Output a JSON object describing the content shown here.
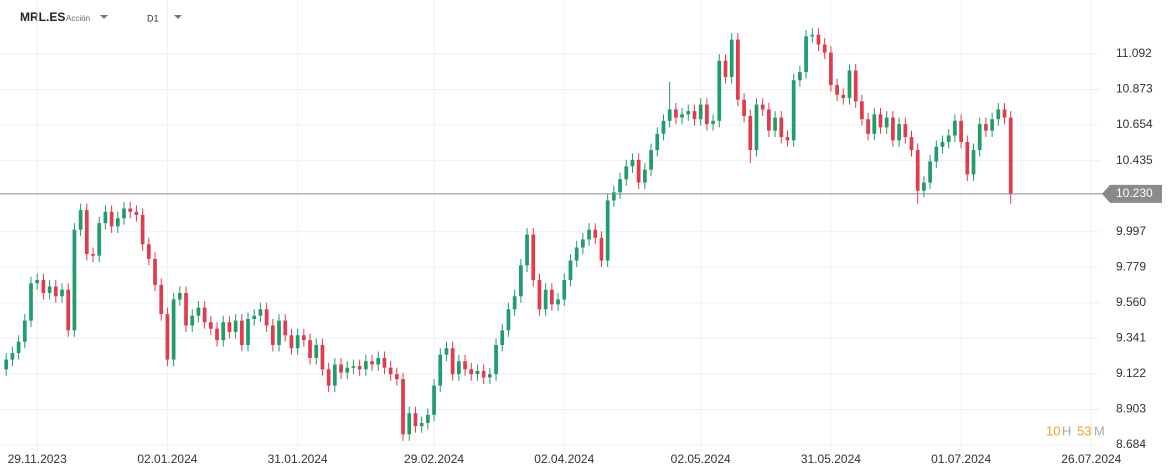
{
  "header": {
    "symbol": "MRL.ES",
    "kind": "Acción",
    "timeframe": "D1"
  },
  "timer": {
    "hours": "10",
    "hours_unit": "H",
    "minutes": "53",
    "minutes_unit": "M"
  },
  "chart_data": {
    "type": "candlestick",
    "up_color": "#1f9d6b",
    "down_color": "#e23b4e",
    "grid": true,
    "xlim": [
      -1,
      176.4
    ],
    "xticks": [
      {
        "value": 5,
        "label": "29.11.2023"
      },
      {
        "value": 26,
        "label": "02.01.2024"
      },
      {
        "value": 47,
        "label": "31.01.2024"
      },
      {
        "value": 69,
        "label": "29.02.2024"
      },
      {
        "value": 90,
        "label": "02.04.2024"
      },
      {
        "value": 112,
        "label": "02.05.2024"
      },
      {
        "value": 133,
        "label": "31.05.2024"
      },
      {
        "value": 154,
        "label": "01.07.2024"
      },
      {
        "value": 175,
        "label": "26.07.2024"
      }
    ],
    "ylim": [
      8.641,
      11.424
    ],
    "yticks": [
      11.092,
      10.873,
      10.654,
      10.435,
      9.997,
      9.779,
      {
        "value": 9.56,
        "label": "9.560"
      },
      9.341,
      9.122,
      8.903,
      8.684
    ],
    "last_price": {
      "value": 10.23,
      "label": "10.230"
    },
    "open": [
      9.15,
      9.21,
      9.25,
      9.32,
      9.45,
      9.68,
      9.7,
      9.62,
      9.66,
      9.6,
      9.64,
      9.39,
      10.01,
      10.13,
      9.86,
      9.85,
      10.05,
      10.12,
      10.03,
      10.08,
      10.14,
      10.12,
      10.1,
      9.92,
      9.83,
      9.67,
      9.49,
      9.21,
      9.58,
      9.62,
      9.42,
      9.48,
      9.53,
      9.44,
      9.4,
      9.33,
      9.44,
      9.38,
      9.45,
      9.3,
      9.46,
      9.48,
      9.52,
      9.42,
      9.3,
      9.45,
      9.36,
      9.28,
      9.36,
      9.33,
      9.22,
      9.3,
      9.15,
      9.05,
      9.18,
      9.13,
      9.16,
      9.17,
      9.15,
      9.2,
      9.18,
      9.22,
      9.16,
      9.12,
      9.09,
      8.75,
      8.88,
      8.8,
      8.82,
      8.87,
      9.05,
      9.24,
      9.28,
      9.12,
      9.2,
      9.15,
      9.12,
      9.14,
      9.1,
      9.12,
      9.3,
      9.39,
      9.52,
      9.6,
      9.79,
      9.98,
      9.7,
      9.52,
      9.64,
      9.55,
      9.58,
      9.7,
      9.82,
      9.9,
      9.95,
      10.01,
      9.96,
      9.82,
      10.19,
      10.24,
      10.32,
      10.4,
      10.44,
      10.3,
      10.38,
      10.5,
      10.6,
      10.68,
      10.75,
      10.7,
      10.72,
      10.74,
      10.69,
      10.78,
      10.66,
      10.68,
      11.05,
      10.95,
      11.18,
      10.81,
      10.71,
      10.5,
      10.78,
      10.75,
      10.62,
      10.7,
      10.58,
      10.56,
      10.93,
      10.98,
      11.2,
      11.21,
      11.15,
      11.1,
      10.9,
      10.84,
      10.82,
      10.99,
      10.8,
      10.69,
      10.6,
      10.72,
      10.64,
      10.7,
      10.56,
      10.66,
      10.58,
      10.5,
      10.25,
      10.3,
      10.43,
      10.52,
      10.55,
      10.59,
      10.68,
      10.55,
      10.35,
      10.5,
      10.66,
      10.62,
      10.69,
      10.75,
      10.7
    ],
    "high": [
      9.25,
      9.29,
      9.36,
      9.49,
      9.72,
      9.74,
      9.74,
      9.7,
      9.7,
      9.68,
      9.68,
      10.05,
      10.17,
      10.17,
      9.9,
      10.09,
      10.16,
      10.16,
      10.12,
      10.18,
      10.18,
      10.16,
      10.14,
      9.96,
      9.87,
      9.71,
      9.53,
      9.62,
      9.66,
      9.66,
      9.52,
      9.57,
      9.57,
      9.48,
      9.44,
      9.48,
      9.48,
      9.49,
      9.49,
      9.5,
      9.52,
      9.56,
      9.56,
      9.46,
      9.49,
      9.49,
      9.4,
      9.4,
      9.4,
      9.37,
      9.34,
      9.34,
      9.19,
      9.22,
      9.22,
      9.2,
      9.21,
      9.21,
      9.24,
      9.24,
      9.26,
      9.26,
      9.2,
      9.16,
      9.13,
      8.92,
      8.92,
      8.86,
      8.91,
      9.09,
      9.28,
      9.32,
      9.32,
      9.24,
      9.24,
      9.19,
      9.18,
      9.18,
      9.16,
      9.34,
      9.43,
      9.56,
      9.64,
      9.83,
      10.02,
      10.02,
      9.74,
      9.68,
      9.68,
      9.62,
      9.74,
      9.86,
      9.94,
      9.99,
      10.05,
      10.05,
      10.0,
      10.23,
      10.28,
      10.36,
      10.44,
      10.48,
      10.48,
      10.42,
      10.54,
      10.64,
      10.72,
      10.92,
      10.79,
      10.76,
      10.78,
      10.78,
      10.82,
      10.82,
      10.72,
      11.09,
      11.09,
      11.22,
      11.22,
      10.85,
      10.75,
      10.82,
      10.82,
      10.79,
      10.74,
      10.74,
      10.62,
      10.97,
      11.02,
      11.24,
      11.25,
      11.25,
      11.19,
      11.14,
      10.94,
      10.88,
      11.03,
      11.03,
      10.84,
      10.73,
      10.76,
      10.76,
      10.74,
      10.74,
      10.7,
      10.7,
      10.62,
      10.54,
      10.34,
      10.47,
      10.56,
      10.59,
      10.63,
      10.72,
      10.72,
      10.59,
      10.54,
      10.7,
      10.7,
      10.73,
      10.79,
      10.79,
      10.74
    ],
    "low": [
      9.11,
      9.17,
      9.21,
      9.28,
      9.41,
      9.64,
      9.58,
      9.58,
      9.56,
      9.56,
      9.35,
      9.35,
      9.97,
      9.82,
      9.81,
      9.81,
      10.01,
      9.99,
      9.99,
      10.04,
      10.08,
      10.06,
      9.88,
      9.79,
      9.63,
      9.45,
      9.17,
      9.17,
      9.54,
      9.38,
      9.38,
      9.44,
      9.4,
      9.36,
      9.29,
      9.29,
      9.34,
      9.34,
      9.26,
      9.26,
      9.42,
      9.44,
      9.38,
      9.26,
      9.26,
      9.32,
      9.24,
      9.24,
      9.29,
      9.18,
      9.18,
      9.11,
      9.01,
      9.01,
      9.09,
      9.09,
      9.12,
      9.11,
      9.11,
      9.14,
      9.14,
      9.12,
      9.08,
      9.05,
      8.71,
      8.71,
      8.76,
      8.76,
      8.78,
      8.83,
      9.01,
      9.2,
      9.08,
      9.08,
      9.11,
      9.08,
      9.08,
      9.06,
      9.06,
      9.08,
      9.26,
      9.35,
      9.48,
      9.56,
      9.75,
      9.66,
      9.48,
      9.48,
      9.51,
      9.51,
      9.54,
      9.66,
      9.78,
      9.86,
      9.91,
      9.92,
      9.78,
      9.78,
      10.15,
      10.2,
      10.28,
      10.36,
      10.26,
      10.26,
      10.34,
      10.46,
      10.56,
      10.64,
      10.66,
      10.66,
      10.68,
      10.65,
      10.65,
      10.62,
      10.62,
      10.64,
      10.91,
      10.91,
      10.77,
      10.67,
      10.42,
      10.46,
      10.71,
      10.58,
      10.58,
      10.54,
      10.52,
      10.52,
      10.89,
      10.94,
      11.16,
      11.11,
      11.06,
      10.86,
      10.8,
      10.78,
      10.78,
      10.76,
      10.65,
      10.56,
      10.56,
      10.6,
      10.6,
      10.52,
      10.52,
      10.54,
      10.46,
      10.17,
      10.21,
      10.26,
      10.39,
      10.48,
      10.51,
      10.55,
      10.51,
      10.31,
      10.31,
      10.46,
      10.58,
      10.58,
      10.65,
      10.66,
      10.17
    ],
    "close": [
      9.21,
      9.25,
      9.32,
      9.45,
      9.68,
      9.7,
      9.62,
      9.66,
      9.6,
      9.64,
      9.39,
      10.01,
      10.13,
      9.86,
      9.85,
      10.05,
      10.12,
      10.03,
      10.08,
      10.14,
      10.12,
      10.1,
      9.92,
      9.83,
      9.67,
      9.49,
      9.21,
      9.58,
      9.62,
      9.42,
      9.48,
      9.53,
      9.44,
      9.4,
      9.33,
      9.44,
      9.38,
      9.45,
      9.3,
      9.46,
      9.48,
      9.52,
      9.42,
      9.3,
      9.45,
      9.36,
      9.28,
      9.36,
      9.33,
      9.22,
      9.3,
      9.15,
      9.05,
      9.18,
      9.13,
      9.16,
      9.17,
      9.15,
      9.2,
      9.18,
      9.22,
      9.16,
      9.12,
      9.09,
      8.75,
      8.88,
      8.8,
      8.82,
      8.87,
      9.05,
      9.24,
      9.28,
      9.12,
      9.2,
      9.15,
      9.12,
      9.14,
      9.1,
      9.12,
      9.3,
      9.39,
      9.52,
      9.6,
      9.79,
      9.98,
      9.7,
      9.52,
      9.64,
      9.55,
      9.58,
      9.7,
      9.82,
      9.9,
      9.95,
      10.01,
      9.96,
      9.82,
      10.19,
      10.24,
      10.32,
      10.4,
      10.44,
      10.3,
      10.38,
      10.5,
      10.6,
      10.68,
      10.75,
      10.7,
      10.72,
      10.74,
      10.69,
      10.78,
      10.66,
      10.68,
      11.05,
      10.95,
      11.18,
      10.81,
      10.71,
      10.5,
      10.78,
      10.75,
      10.62,
      10.7,
      10.58,
      10.56,
      10.93,
      10.98,
      11.2,
      11.21,
      11.15,
      11.1,
      10.9,
      10.84,
      10.82,
      10.99,
      10.8,
      10.69,
      10.6,
      10.72,
      10.64,
      10.7,
      10.56,
      10.66,
      10.58,
      10.5,
      10.25,
      10.3,
      10.43,
      10.52,
      10.55,
      10.59,
      10.68,
      10.55,
      10.35,
      10.5,
      10.66,
      10.62,
      10.69,
      10.75,
      10.7,
      10.23
    ]
  }
}
